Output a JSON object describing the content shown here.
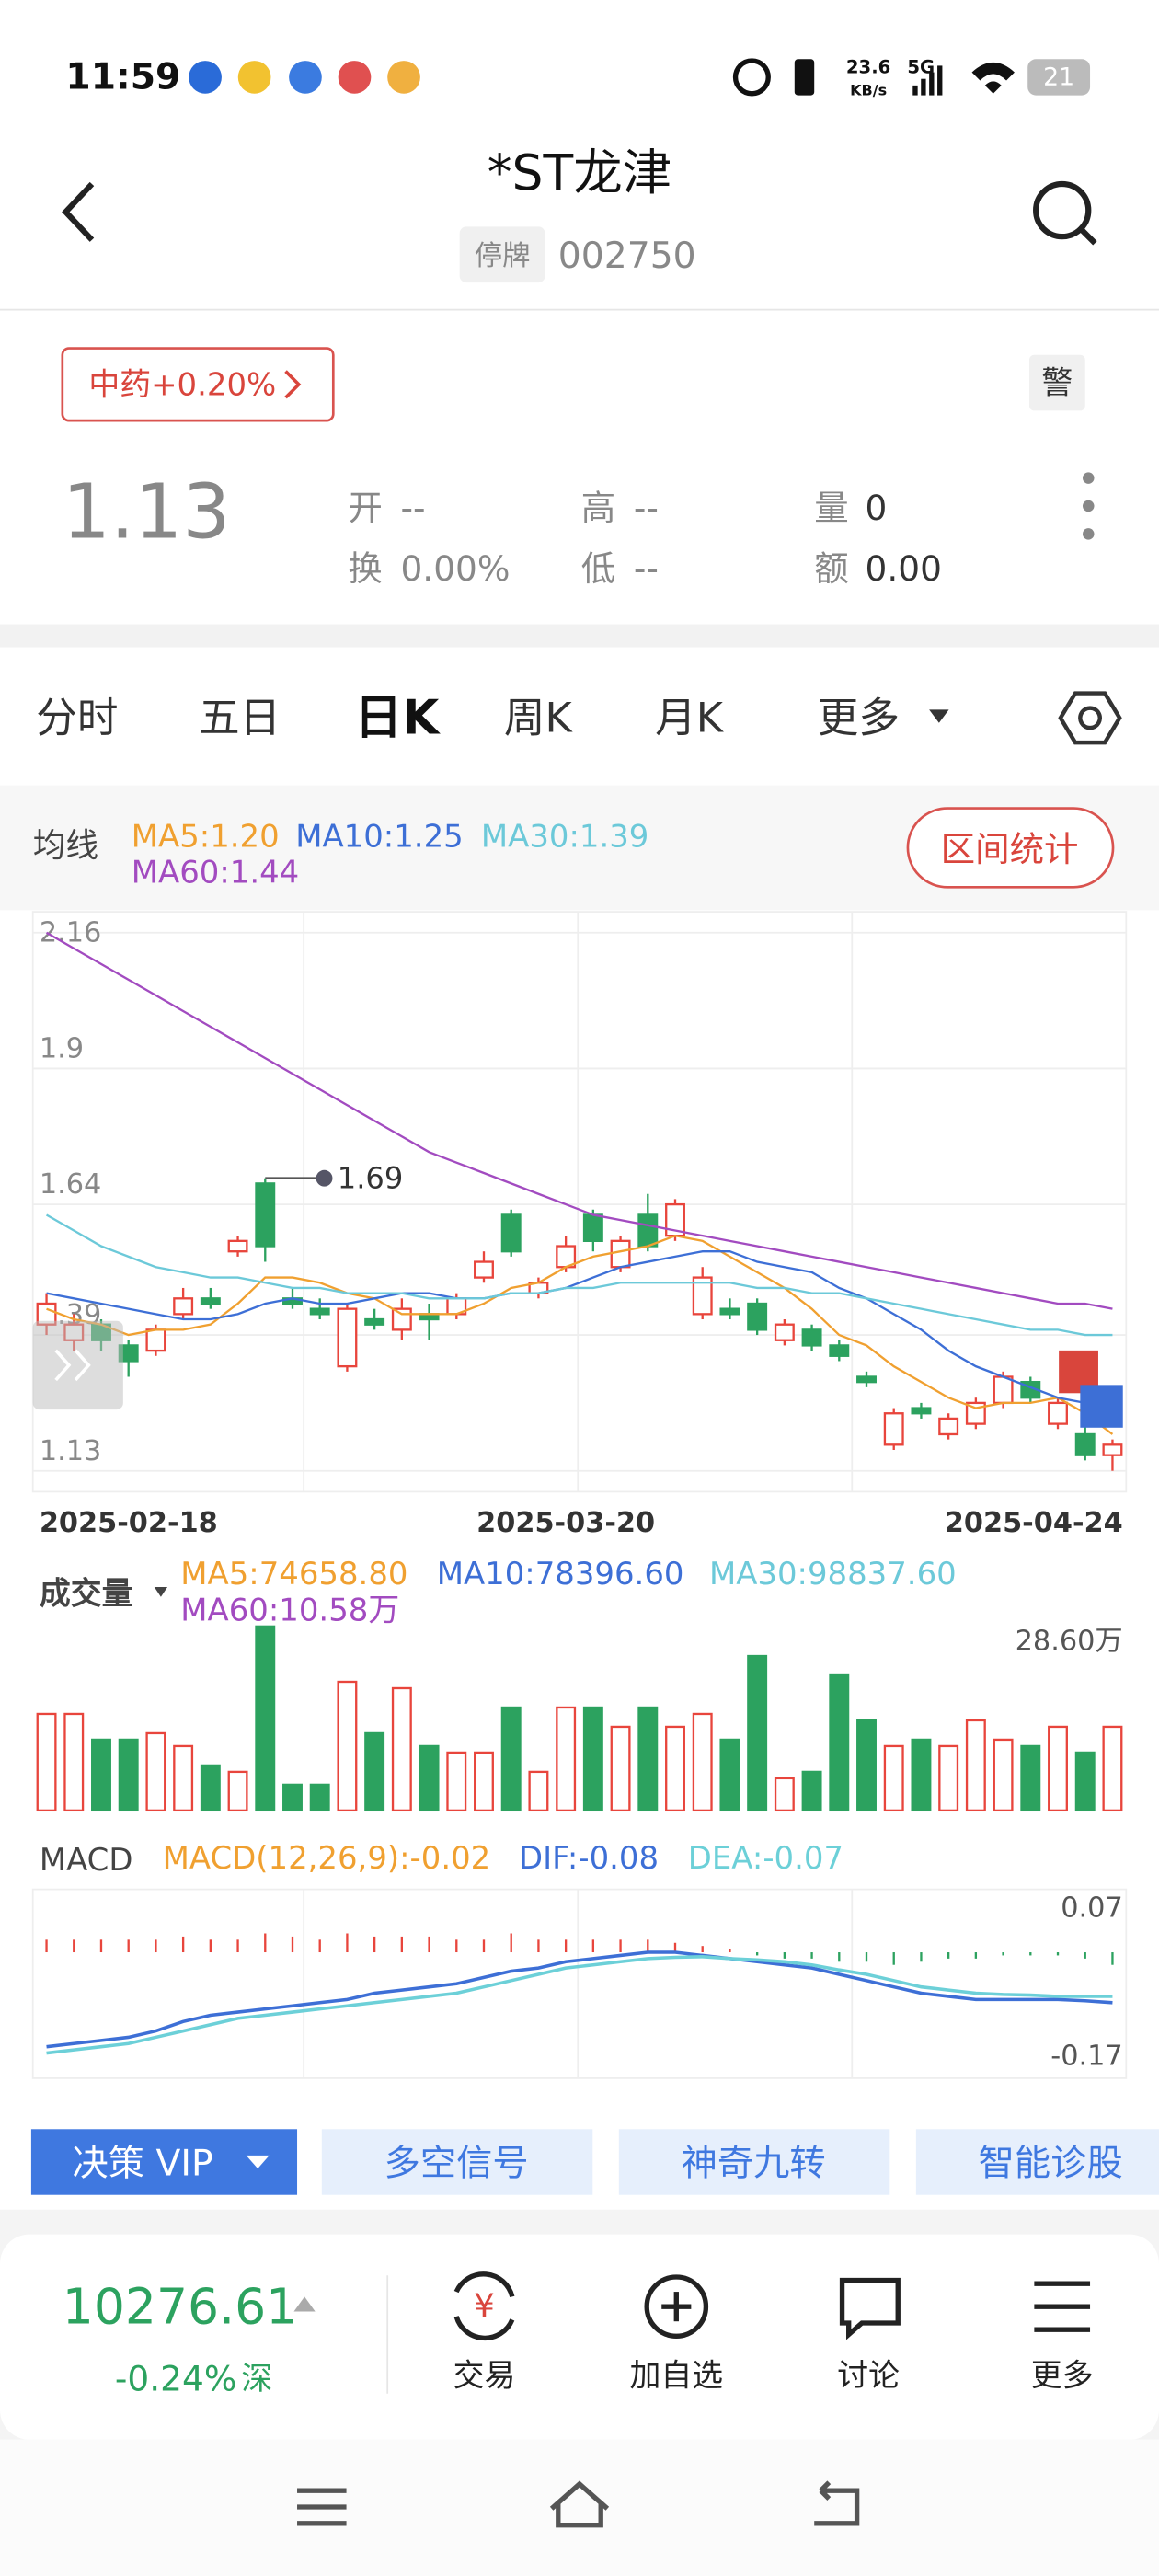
{
  "status_bar": {
    "time": "11:59",
    "speed_value": "23.6",
    "speed_unit": "KB/s",
    "network": "5G",
    "battery": "21"
  },
  "header": {
    "title": "*ST龙津",
    "status": "停牌",
    "code": "002750"
  },
  "quote": {
    "sector": "中药+0.20%",
    "alert": "警",
    "price": "1.13",
    "open_label": "开",
    "open": "--",
    "high_label": "高",
    "high": "--",
    "volume_label": "量",
    "volume": "0",
    "turnover_label": "换",
    "turnover": "0.00%",
    "low_label": "低",
    "low": "--",
    "amount_label": "额",
    "amount": "0.00"
  },
  "tabs": [
    "分时",
    "五日",
    "日K",
    "周K",
    "月K",
    "更多"
  ],
  "ma_panel": {
    "label": "均线",
    "button": "区间统计"
  },
  "chart_data": [
    {
      "type": "candlestick",
      "categories": [
        "2025-02-18",
        null,
        null,
        null,
        null,
        null,
        null,
        null,
        null,
        null,
        null,
        null,
        null,
        null,
        null,
        null,
        null,
        null,
        null,
        "2025-03-20",
        null,
        null,
        null,
        null,
        null,
        null,
        null,
        null,
        null,
        null,
        null,
        null,
        null,
        null,
        null,
        null,
        null,
        null,
        null,
        "2025-04-24"
      ],
      "open": [
        1.41,
        1.38,
        1.41,
        1.37,
        1.36,
        1.43,
        1.46,
        1.55,
        1.68,
        1.46,
        1.44,
        1.33,
        1.42,
        1.4,
        1.43,
        1.43,
        1.5,
        1.62,
        1.47,
        1.52,
        1.62,
        1.52,
        1.62,
        1.58,
        1.43,
        1.44,
        1.45,
        1.38,
        1.4,
        1.37,
        1.31,
        1.18,
        1.25,
        1.2,
        1.22,
        1.26,
        1.3,
        1.22,
        1.2,
        1.16
      ],
      "close": [
        1.45,
        1.41,
        1.38,
        1.34,
        1.4,
        1.46,
        1.45,
        1.57,
        1.56,
        1.45,
        1.43,
        1.44,
        1.41,
        1.44,
        1.42,
        1.46,
        1.53,
        1.55,
        1.49,
        1.56,
        1.57,
        1.57,
        1.56,
        1.64,
        1.5,
        1.43,
        1.4,
        1.41,
        1.37,
        1.35,
        1.3,
        1.24,
        1.24,
        1.23,
        1.26,
        1.31,
        1.27,
        1.26,
        1.16,
        1.18
      ],
      "high": [
        1.47,
        1.43,
        1.42,
        1.38,
        1.41,
        1.48,
        1.48,
        1.58,
        1.69,
        1.48,
        1.46,
        1.45,
        1.44,
        1.46,
        1.45,
        1.47,
        1.55,
        1.63,
        1.5,
        1.58,
        1.63,
        1.58,
        1.66,
        1.65,
        1.52,
        1.46,
        1.46,
        1.42,
        1.41,
        1.38,
        1.32,
        1.25,
        1.26,
        1.24,
        1.27,
        1.32,
        1.31,
        1.27,
        1.22,
        1.19
      ],
      "low": [
        1.39,
        1.36,
        1.36,
        1.31,
        1.35,
        1.42,
        1.44,
        1.54,
        1.53,
        1.44,
        1.42,
        1.32,
        1.4,
        1.38,
        1.38,
        1.42,
        1.49,
        1.54,
        1.46,
        1.51,
        1.55,
        1.51,
        1.55,
        1.57,
        1.42,
        1.42,
        1.39,
        1.37,
        1.36,
        1.34,
        1.29,
        1.17,
        1.23,
        1.19,
        1.21,
        1.25,
        1.26,
        1.21,
        1.15,
        1.13
      ],
      "up_color": "#e8453c",
      "down_color": "#2ca25f",
      "series": [
        {
          "name": "MA5:1.20",
          "color": "#f0a030",
          "values": [
            1.44,
            1.42,
            1.41,
            1.39,
            1.4,
            1.4,
            1.41,
            1.45,
            1.5,
            1.5,
            1.49,
            1.47,
            1.46,
            1.43,
            1.43,
            1.43,
            1.45,
            1.48,
            1.49,
            1.52,
            1.54,
            1.55,
            1.56,
            1.58,
            1.57,
            1.54,
            1.51,
            1.48,
            1.44,
            1.39,
            1.37,
            1.33,
            1.3,
            1.27,
            1.25,
            1.26,
            1.26,
            1.27,
            1.24,
            1.2
          ]
        },
        {
          "name": "MA10:1.25",
          "color": "#3d6fd6",
          "values": [
            1.47,
            1.46,
            1.45,
            1.44,
            1.43,
            1.42,
            1.42,
            1.43,
            1.45,
            1.46,
            1.45,
            1.45,
            1.46,
            1.47,
            1.47,
            1.46,
            1.46,
            1.47,
            1.47,
            1.48,
            1.5,
            1.52,
            1.53,
            1.54,
            1.55,
            1.55,
            1.53,
            1.52,
            1.51,
            1.48,
            1.46,
            1.43,
            1.4,
            1.36,
            1.33,
            1.31,
            1.29,
            1.27,
            1.26,
            1.25
          ]
        },
        {
          "name": "MA30:1.39",
          "color": "#6cc9d9",
          "values": [
            1.62,
            1.59,
            1.56,
            1.54,
            1.52,
            1.51,
            1.5,
            1.5,
            1.49,
            1.48,
            1.48,
            1.47,
            1.47,
            1.47,
            1.46,
            1.46,
            1.46,
            1.47,
            1.47,
            1.48,
            1.48,
            1.49,
            1.49,
            1.49,
            1.49,
            1.49,
            1.48,
            1.48,
            1.47,
            1.47,
            1.46,
            1.45,
            1.44,
            1.43,
            1.42,
            1.41,
            1.4,
            1.4,
            1.39,
            1.39
          ]
        },
        {
          "name": "MA60:1.44",
          "color": "#a24bc0",
          "values": [
            2.16,
            2.13,
            2.1,
            2.07,
            2.04,
            2.01,
            1.98,
            1.95,
            1.92,
            1.89,
            1.86,
            1.83,
            1.8,
            1.77,
            1.74,
            1.72,
            1.7,
            1.68,
            1.66,
            1.64,
            1.62,
            1.61,
            1.6,
            1.59,
            1.58,
            1.57,
            1.56,
            1.55,
            1.54,
            1.53,
            1.52,
            1.51,
            1.5,
            1.49,
            1.48,
            1.47,
            1.46,
            1.45,
            1.45,
            1.44
          ]
        }
      ],
      "ylim": [
        1.09,
        2.2
      ],
      "yticks": [
        2.16,
        1.9,
        1.64,
        1.39,
        1.13
      ],
      "grid": true
    },
    {
      "type": "bar",
      "title": "成交量",
      "legend": [
        {
          "name": "MA5:74658.80",
          "color": "#f0a030"
        },
        {
          "name": "MA10:78396.60",
          "color": "#3d6fd6"
        },
        {
          "name": "MA30:98837.60",
          "color": "#6cc9d9"
        },
        {
          "name": "MA60:10.58万",
          "color": "#a24bc0"
        }
      ],
      "values": [
        150000,
        150000,
        110000,
        110000,
        120000,
        100000,
        70000,
        60000,
        286000,
        40000,
        40000,
        200000,
        120000,
        190000,
        100000,
        90000,
        90000,
        160000,
        60000,
        160000,
        160000,
        130000,
        160000,
        130000,
        150000,
        110000,
        240000,
        50000,
        60000,
        210000,
        140000,
        100000,
        110000,
        100000,
        140000,
        110000,
        100000,
        130000,
        90000,
        130000
      ],
      "ylim": [
        0,
        286000
      ],
      "yticks": [
        {
          "value": 286000,
          "label": "28.60万"
        }
      ]
    },
    {
      "type": "macd",
      "title": "MACD",
      "series": [
        {
          "name": "MACD(12,26,9):-0.02",
          "color": "#f0a030",
          "values": [
            0.02,
            0.02,
            0.02,
            0.02,
            0.02,
            0.025,
            0.02,
            0.02,
            0.03,
            0.025,
            0.02,
            0.03,
            0.025,
            0.025,
            0.025,
            0.02,
            0.02,
            0.03,
            0.02,
            0.02,
            0.02,
            0.02,
            0.02,
            0.015,
            0.01,
            0.005,
            -0.005,
            -0.01,
            -0.01,
            -0.015,
            -0.015,
            -0.02,
            -0.015,
            -0.01,
            -0.01,
            -0.005,
            -0.005,
            -0.005,
            -0.01,
            -0.02
          ]
        },
        {
          "name": "DIF:-0.08",
          "color": "#3d6fd6",
          "values": [
            -0.15,
            -0.145,
            -0.14,
            -0.135,
            -0.125,
            -0.11,
            -0.1,
            -0.095,
            -0.09,
            -0.085,
            -0.08,
            -0.075,
            -0.065,
            -0.06,
            -0.055,
            -0.05,
            -0.04,
            -0.03,
            -0.025,
            -0.015,
            -0.01,
            -0.005,
            0.0,
            0.0,
            -0.005,
            -0.01,
            -0.015,
            -0.02,
            -0.025,
            -0.035,
            -0.045,
            -0.055,
            -0.065,
            -0.07,
            -0.075,
            -0.075,
            -0.075,
            -0.075,
            -0.077,
            -0.08
          ]
        },
        {
          "name": "DEA:-0.07",
          "color": "#6cd0d8",
          "values": [
            -0.16,
            -0.155,
            -0.15,
            -0.145,
            -0.135,
            -0.125,
            -0.115,
            -0.105,
            -0.1,
            -0.095,
            -0.09,
            -0.085,
            -0.08,
            -0.075,
            -0.07,
            -0.065,
            -0.055,
            -0.045,
            -0.035,
            -0.025,
            -0.02,
            -0.015,
            -0.01,
            -0.008,
            -0.007,
            -0.01,
            -0.012,
            -0.015,
            -0.02,
            -0.028,
            -0.035,
            -0.045,
            -0.055,
            -0.06,
            -0.065,
            -0.067,
            -0.068,
            -0.07,
            -0.07,
            -0.07
          ]
        }
      ],
      "ylim": [
        -0.2,
        0.1
      ],
      "yticks": [
        0.07,
        -0.17
      ]
    }
  ],
  "tools": [
    "决策 VIP",
    "多空信号",
    "神奇九转",
    "智能诊股"
  ],
  "footer": {
    "index": "10276.61",
    "change": "-0.24%",
    "market": "深",
    "actions": [
      "交易",
      "加自选",
      "讨论",
      "更多"
    ]
  }
}
